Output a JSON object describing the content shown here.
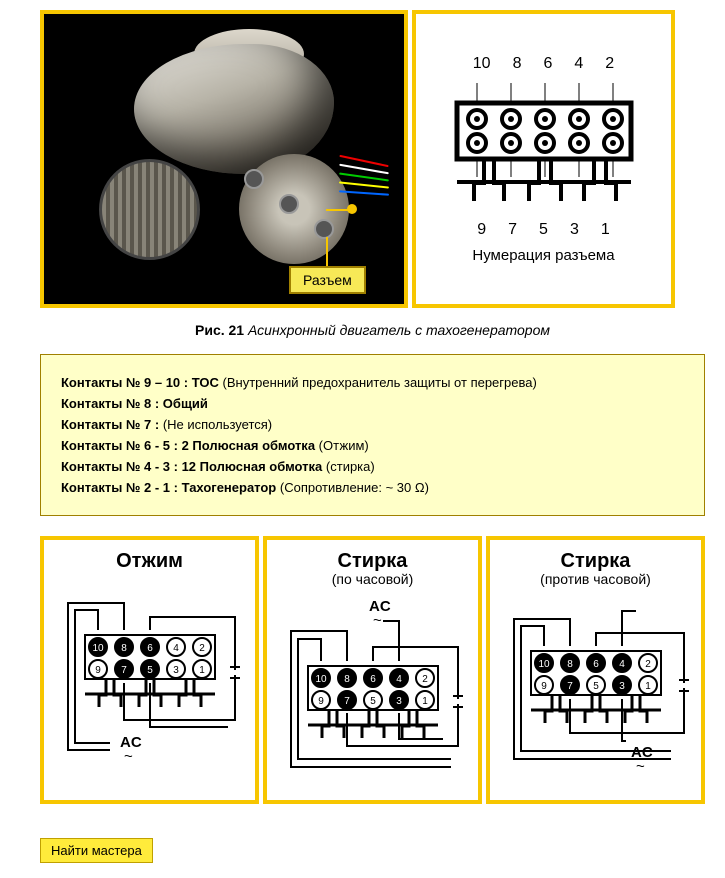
{
  "colors": {
    "accent": "#f7c600",
    "noteBg": "#ffffc8",
    "noteBorder": "#a08000",
    "black": "#000000"
  },
  "callout": {
    "label": "Разъем"
  },
  "connector": {
    "topNumbers": [
      "10",
      "8",
      "6",
      "4",
      "2"
    ],
    "bottomNumbers": [
      "9",
      "7",
      "5",
      "3",
      "1"
    ],
    "caption": "Нумерация разъема"
  },
  "figure": {
    "prefix": "Рис. 21",
    "title": "Асинхронный двигатель с тахогенератором"
  },
  "contacts": [
    {
      "label": "Контакты № 9 – 10 : TOC",
      "desc": "(Внутренний предохранитель защиты от перегрева)"
    },
    {
      "label": "Контакты № 8 : Общий",
      "desc": ""
    },
    {
      "label": "Контакты № 7 :",
      "desc": "(Не используется)"
    },
    {
      "label": "Контакты № 6 - 5 : 2 Полюсная обмотка",
      "desc": "(Отжим)"
    },
    {
      "label": "Контакты № 4 - 3 : 12 Полюсная обмотка",
      "desc": "(стирка)"
    },
    {
      "label": "Контакты № 2 - 1 : Тахогенератор",
      "desc": "(Сопротивление: ~ 30 Ω)"
    }
  ],
  "modes": [
    {
      "title": "Отжим",
      "sub": "",
      "ac_pos": "bottom",
      "active": [
        10,
        8,
        6,
        7,
        5
      ]
    },
    {
      "title": "Стирка",
      "sub": "(по часовой)",
      "ac_pos": "top",
      "active": [
        10,
        8,
        6,
        4,
        7,
        3
      ]
    },
    {
      "title": "Стирка",
      "sub": "(против часовой)",
      "ac_pos": "bottomright",
      "active": [
        10,
        8,
        6,
        4,
        7,
        3
      ]
    }
  ],
  "acLabel": "AC",
  "findButton": "Найти мастера"
}
